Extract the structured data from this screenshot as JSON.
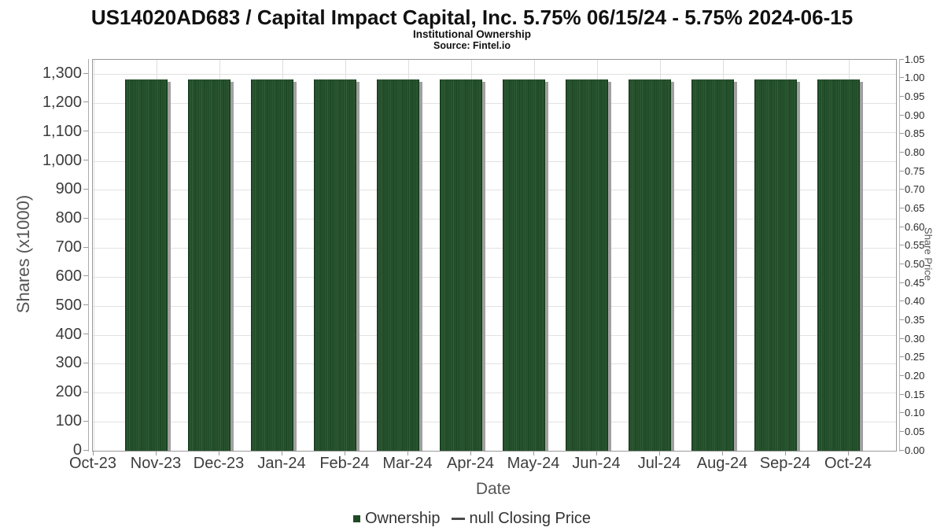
{
  "header": {
    "title": "US14020AD683 / Capital Impact Capital, Inc. 5.75% 06/15/24 - 5.75% 2024-06-15",
    "subtitle": "Institutional Ownership",
    "source": "Source: Fintel.io"
  },
  "chart_data": {
    "type": "bar",
    "title": "US14020AD683 / Capital Impact Capital, Inc. 5.75% 06/15/24 - 5.75% 2024-06-15",
    "subtitle": "Institutional Ownership",
    "source": "Source: Fintel.io",
    "categories": [
      "Nov-23",
      "Dec-23",
      "Jan-24",
      "Feb-24",
      "Mar-24",
      "Apr-24",
      "May-24",
      "Jun-24",
      "Jul-24",
      "Aug-24",
      "Sep-24",
      "Oct-24"
    ],
    "series": [
      {
        "name": "Ownership",
        "values": [
          1280,
          1280,
          1280,
          1280,
          1280,
          1280,
          1280,
          1280,
          1280,
          1280,
          1280,
          1280
        ]
      },
      {
        "name": "null Closing Price",
        "values": []
      }
    ],
    "xlabel": "Date",
    "x_tick_labels": [
      "Oct-23",
      "Nov-23",
      "Dec-23",
      "Jan-24",
      "Feb-24",
      "Mar-24",
      "Apr-24",
      "May-24",
      "Jun-24",
      "Jul-24",
      "Aug-24",
      "Sep-24",
      "Oct-24"
    ],
    "left_axis": {
      "label": "Shares (x1000)",
      "tick_labels": [
        "0",
        "100",
        "200",
        "300",
        "400",
        "500",
        "600",
        "700",
        "800",
        "900",
        "1,000",
        "1,100",
        "1,200",
        "1,300"
      ],
      "range": [
        0,
        1349
      ]
    },
    "right_axis": {
      "label": "Share Price",
      "tick_labels": [
        "0.00",
        "0.05",
        "0.10",
        "0.15",
        "0.20",
        "0.25",
        "0.30",
        "0.35",
        "0.40",
        "0.45",
        "0.50",
        "0.55",
        "0.60",
        "0.65",
        "0.70",
        "0.75",
        "0.80",
        "0.85",
        "0.90",
        "0.95",
        "1.00",
        "1.05"
      ],
      "range": [
        0,
        1.05
      ]
    },
    "legend": [
      {
        "label": "Ownership",
        "marker": "square",
        "color": "#1f4a26"
      },
      {
        "label": "null Closing Price",
        "marker": "line",
        "color": "#4a4a4a"
      }
    ],
    "grid": true,
    "legend_position": "bottom"
  },
  "colors": {
    "bar": "#1f4a26",
    "bar_stripe": "#35603b",
    "bar_shadow": "#a0a0a0",
    "gridline": "#e2e2e2",
    "plot_border": "#999999",
    "tick": "#999999",
    "tick_label": "#3d3d3d",
    "axis_title": "#555555",
    "title_text": "#111111",
    "legend_line": "#4a4a4a"
  }
}
